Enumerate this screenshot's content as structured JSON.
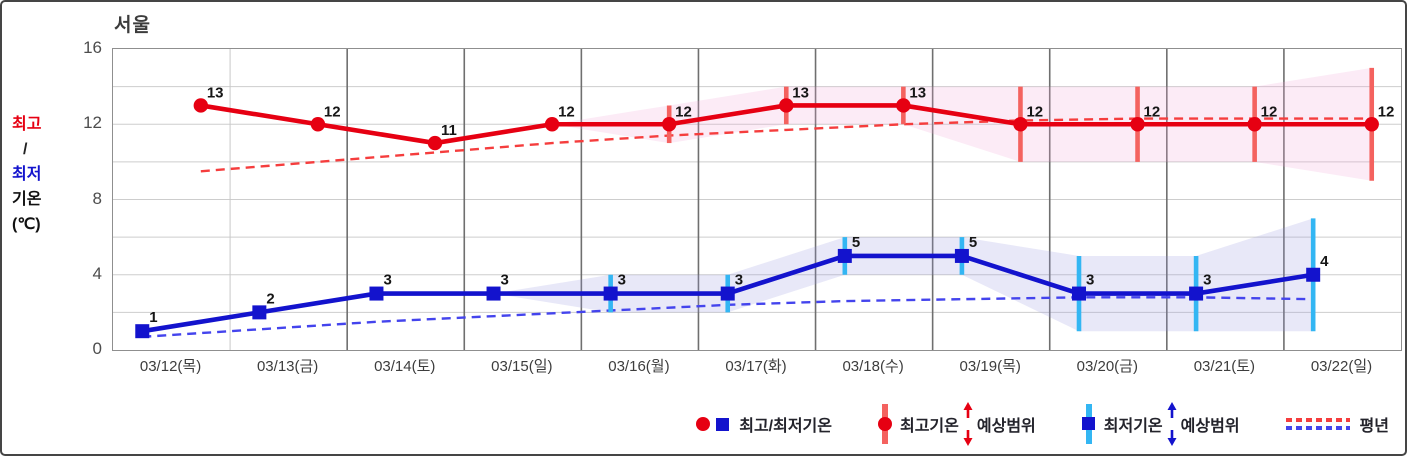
{
  "title": "서울",
  "y_axis": {
    "label_max": "최고",
    "label_slash": "/",
    "label_min": "최저",
    "label_temp": "기온",
    "label_unit": "(℃)"
  },
  "legend": {
    "item_temps": "최고/최저기온",
    "item_max_range_a": "최고기온",
    "item_max_range_b": "예상범위",
    "item_min_range_a": "최저기온",
    "item_min_range_b": "예상범위",
    "item_normal": "평년"
  },
  "colors": {
    "max_line": "#e60012",
    "min_line": "#1313cd",
    "max_range_bar": "#f4625f",
    "min_range_bar": "#33b6f3",
    "max_band": "#f0a2d8",
    "min_band": "#9898dd",
    "max_normal_dash": "#f53d3d",
    "min_normal_dash": "#4444ed",
    "grid": "#cdcdcd",
    "vsep_dark": "#6f6f6f",
    "vsep_light": "#c9c9c9",
    "value_label": "#161616"
  },
  "chart_data": {
    "type": "line",
    "title": "서울",
    "ylabel": "최고/최저 기온 (℃)",
    "ylim": [
      0,
      16
    ],
    "yticks": [
      0,
      4,
      8,
      12,
      16
    ],
    "grid": true,
    "legend_position": "bottom-right",
    "categories": [
      "03/12(목)",
      "03/13(금)",
      "03/14(토)",
      "03/15(일)",
      "03/16(월)",
      "03/17(화)",
      "03/18(수)",
      "03/19(목)",
      "03/20(금)",
      "03/21(토)",
      "03/22(일)"
    ],
    "series": [
      {
        "name": "최고기온",
        "type": "line-marker-circle",
        "values": [
          13,
          12,
          11,
          12,
          12,
          13,
          13,
          12,
          12,
          12,
          12
        ]
      },
      {
        "name": "최저기온",
        "type": "line-marker-square",
        "values": [
          1,
          2,
          3,
          3,
          3,
          3,
          5,
          5,
          3,
          3,
          4
        ]
      },
      {
        "name": "최고기온 예상범위",
        "type": "errorbar",
        "ranges": [
          null,
          null,
          null,
          null,
          [
            11,
            13
          ],
          [
            12,
            14
          ],
          [
            12,
            14
          ],
          [
            10,
            14
          ],
          [
            10,
            14
          ],
          [
            10,
            14
          ],
          [
            9,
            15
          ]
        ]
      },
      {
        "name": "최저기온 예상범위",
        "type": "errorbar",
        "ranges": [
          null,
          null,
          null,
          null,
          [
            2,
            4
          ],
          [
            2,
            4
          ],
          [
            4,
            6
          ],
          [
            4,
            6
          ],
          [
            1,
            5
          ],
          [
            1,
            5
          ],
          [
            1,
            7
          ]
        ]
      },
      {
        "name": "평년 최고기온",
        "type": "dashed-line",
        "values": [
          9.5,
          10.0,
          10.5,
          11.0,
          11.4,
          11.7,
          12.0,
          12.2,
          12.3,
          12.3,
          12.3
        ]
      },
      {
        "name": "평년 최저기온",
        "type": "dashed-line",
        "values": [
          0.7,
          1.1,
          1.5,
          1.8,
          2.1,
          2.4,
          2.6,
          2.7,
          2.8,
          2.8,
          2.7
        ]
      }
    ]
  }
}
